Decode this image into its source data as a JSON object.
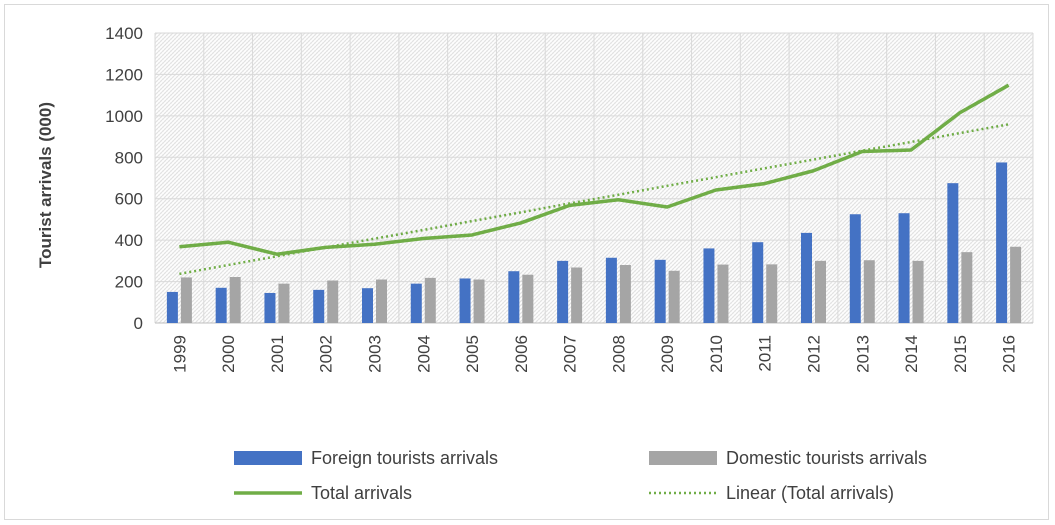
{
  "chart_data": {
    "type": "bar",
    "title": "",
    "xlabel": "",
    "ylabel": "Tourist arrivals (000)",
    "ylim": [
      0,
      1400
    ],
    "yticks": [
      0,
      200,
      400,
      600,
      800,
      1000,
      1200,
      1400
    ],
    "grid": true,
    "legend_position": "bottom",
    "categories": [
      "1999",
      "2000",
      "2001",
      "2002",
      "2003",
      "2004",
      "2005",
      "2006",
      "2007",
      "2008",
      "2009",
      "2010",
      "2011",
      "2012",
      "2013",
      "2014",
      "2015",
      "2016"
    ],
    "series": [
      {
        "name": "Foreign tourists arrivals",
        "type": "bar",
        "color": "#4472c4",
        "values": [
          150,
          170,
          145,
          160,
          168,
          190,
          215,
          250,
          300,
          315,
          305,
          360,
          390,
          435,
          525,
          530,
          675,
          775
        ]
      },
      {
        "name": "Domestic tourists arrivals",
        "type": "bar",
        "color": "#a5a5a5",
        "values": [
          220,
          222,
          190,
          205,
          210,
          218,
          210,
          233,
          268,
          280,
          252,
          282,
          283,
          300,
          303,
          300,
          342,
          368
        ]
      },
      {
        "name": "Total arrivals",
        "type": "line",
        "color": "#70ad47",
        "values": [
          368,
          390,
          332,
          365,
          380,
          408,
          425,
          483,
          568,
          595,
          560,
          642,
          673,
          735,
          828,
          835,
          1015,
          1148
        ]
      },
      {
        "name": "Linear (Total arrivals)",
        "type": "trendline",
        "color": "#70ad47",
        "values": [
          237,
          280,
          322,
          365,
          407,
          449,
          492,
          534,
          577,
          619,
          662,
          704,
          747,
          789,
          832,
          874,
          917,
          959
        ]
      }
    ]
  }
}
